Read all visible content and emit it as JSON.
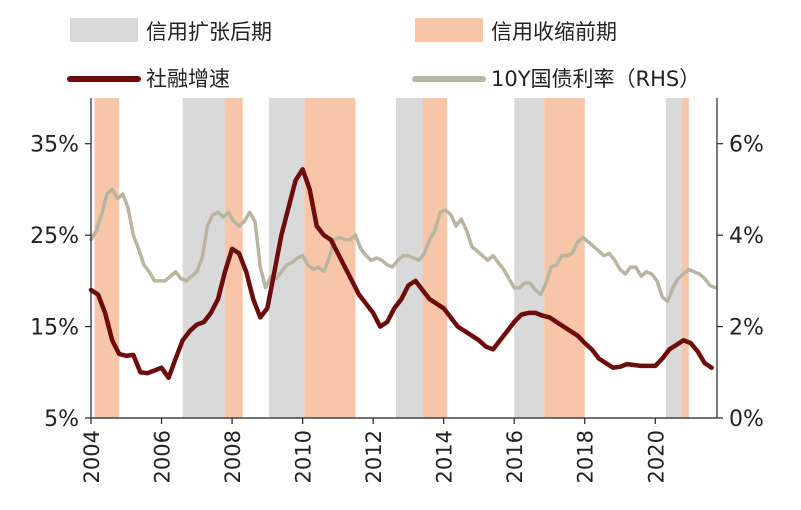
{
  "chart_data": {
    "type": "line",
    "legend": {
      "items": [
        {
          "label": "信用扩张后期",
          "kind": "band",
          "color": "#d9d9d9"
        },
        {
          "label": "信用收缩前期",
          "kind": "band",
          "color": "#f7c6a8"
        },
        {
          "label": "社融增速",
          "kind": "line",
          "color": "#6e0b0b"
        },
        {
          "label": "10Y国债利率（RHS）",
          "kind": "line",
          "color": "#b8b5a3"
        }
      ],
      "placement": "top"
    },
    "x_axis": {
      "min": 2004.0,
      "max": 2021.75,
      "ticks": [
        "2004",
        "2006",
        "2008",
        "2010",
        "2012",
        "2014",
        "2016",
        "2018",
        "2020"
      ],
      "tick_values": [
        2004,
        2006,
        2008,
        2010,
        2012,
        2014,
        2016,
        2018,
        2020
      ]
    },
    "y_left": {
      "min": 5,
      "max": 40,
      "ticks": [
        "5%",
        "15%",
        "25%",
        "35%"
      ],
      "tick_values": [
        5,
        15,
        25,
        35
      ]
    },
    "y_right": {
      "min": 0,
      "max": 7,
      "ticks": [
        "0%",
        "2%",
        "4%",
        "6%"
      ],
      "tick_values": [
        0,
        2,
        4,
        6
      ]
    },
    "grid": false,
    "bands": [
      {
        "type": "contraction_early",
        "start": 2004.1,
        "end": 2004.8
      },
      {
        "type": "expansion_late",
        "start": 2006.6,
        "end": 2007.8
      },
      {
        "type": "contraction_early",
        "start": 2007.8,
        "end": 2008.3
      },
      {
        "type": "expansion_late",
        "start": 2009.05,
        "end": 2010.05
      },
      {
        "type": "contraction_early",
        "start": 2010.05,
        "end": 2011.5
      },
      {
        "type": "expansion_late",
        "start": 2012.65,
        "end": 2013.4
      },
      {
        "type": "contraction_early",
        "start": 2013.4,
        "end": 2014.1
      },
      {
        "type": "expansion_late",
        "start": 2016.0,
        "end": 2016.85
      },
      {
        "type": "contraction_early",
        "start": 2016.85,
        "end": 2018.0
      },
      {
        "type": "expansion_late",
        "start": 2020.3,
        "end": 2020.75
      },
      {
        "type": "contraction_early",
        "start": 2020.75,
        "end": 2020.95
      }
    ],
    "series": [
      {
        "name": "社融增速",
        "axis": "left",
        "points": [
          [
            2004.0,
            19.0
          ],
          [
            2004.2,
            18.5
          ],
          [
            2004.4,
            16.5
          ],
          [
            2004.6,
            13.5
          ],
          [
            2004.8,
            12.0
          ],
          [
            2005.0,
            11.8
          ],
          [
            2005.2,
            11.9
          ],
          [
            2005.4,
            10.0
          ],
          [
            2005.6,
            9.9
          ],
          [
            2005.8,
            10.2
          ],
          [
            2006.0,
            10.5
          ],
          [
            2006.2,
            9.4
          ],
          [
            2006.4,
            11.5
          ],
          [
            2006.6,
            13.5
          ],
          [
            2006.8,
            14.5
          ],
          [
            2007.0,
            15.2
          ],
          [
            2007.2,
            15.5
          ],
          [
            2007.4,
            16.5
          ],
          [
            2007.6,
            18.0
          ],
          [
            2007.8,
            21.0
          ],
          [
            2008.0,
            23.5
          ],
          [
            2008.2,
            23.0
          ],
          [
            2008.4,
            21.0
          ],
          [
            2008.6,
            18.0
          ],
          [
            2008.8,
            16.0
          ],
          [
            2009.0,
            17.0
          ],
          [
            2009.2,
            21.0
          ],
          [
            2009.4,
            25.0
          ],
          [
            2009.6,
            28.0
          ],
          [
            2009.8,
            31.0
          ],
          [
            2010.0,
            32.2
          ],
          [
            2010.2,
            30.0
          ],
          [
            2010.4,
            26.0
          ],
          [
            2010.6,
            25.0
          ],
          [
            2010.8,
            24.5
          ],
          [
            2011.0,
            23.0
          ],
          [
            2011.2,
            21.5
          ],
          [
            2011.4,
            20.0
          ],
          [
            2011.6,
            18.5
          ],
          [
            2011.8,
            17.5
          ],
          [
            2012.0,
            16.5
          ],
          [
            2012.2,
            15.0
          ],
          [
            2012.4,
            15.5
          ],
          [
            2012.6,
            17.0
          ],
          [
            2012.8,
            18.0
          ],
          [
            2013.0,
            19.5
          ],
          [
            2013.2,
            20.0
          ],
          [
            2013.4,
            19.0
          ],
          [
            2013.6,
            18.0
          ],
          [
            2013.8,
            17.5
          ],
          [
            2014.0,
            17.0
          ],
          [
            2014.2,
            16.0
          ],
          [
            2014.4,
            15.0
          ],
          [
            2014.6,
            14.5
          ],
          [
            2014.8,
            14.0
          ],
          [
            2015.0,
            13.5
          ],
          [
            2015.2,
            12.8
          ],
          [
            2015.4,
            12.5
          ],
          [
            2015.6,
            13.5
          ],
          [
            2015.8,
            14.5
          ],
          [
            2016.0,
            15.5
          ],
          [
            2016.2,
            16.3
          ],
          [
            2016.4,
            16.5
          ],
          [
            2016.6,
            16.5
          ],
          [
            2016.8,
            16.2
          ],
          [
            2017.0,
            16.0
          ],
          [
            2017.2,
            15.5
          ],
          [
            2017.4,
            15.0
          ],
          [
            2017.6,
            14.5
          ],
          [
            2017.8,
            14.0
          ],
          [
            2018.0,
            13.2
          ],
          [
            2018.2,
            12.5
          ],
          [
            2018.4,
            11.5
          ],
          [
            2018.6,
            11.0
          ],
          [
            2018.8,
            10.5
          ],
          [
            2019.0,
            10.6
          ],
          [
            2019.2,
            10.9
          ],
          [
            2019.4,
            10.8
          ],
          [
            2019.6,
            10.7
          ],
          [
            2019.8,
            10.7
          ],
          [
            2020.0,
            10.7
          ],
          [
            2020.2,
            11.5
          ],
          [
            2020.4,
            12.5
          ],
          [
            2020.6,
            13.0
          ],
          [
            2020.8,
            13.5
          ],
          [
            2021.0,
            13.2
          ],
          [
            2021.2,
            12.3
          ],
          [
            2021.4,
            11.0
          ],
          [
            2021.6,
            10.5
          ]
        ]
      },
      {
        "name": "10Y国债利率（RHS）",
        "axis": "right",
        "points": [
          [
            2004.0,
            3.9
          ],
          [
            2004.15,
            4.1
          ],
          [
            2004.3,
            4.45
          ],
          [
            2004.45,
            4.9
          ],
          [
            2004.6,
            5.0
          ],
          [
            2004.75,
            4.8
          ],
          [
            2004.9,
            4.9
          ],
          [
            2005.05,
            4.6
          ],
          [
            2005.2,
            4.0
          ],
          [
            2005.35,
            3.7
          ],
          [
            2005.5,
            3.35
          ],
          [
            2005.65,
            3.2
          ],
          [
            2005.8,
            3.0
          ],
          [
            2005.95,
            3.0
          ],
          [
            2006.1,
            3.0
          ],
          [
            2006.25,
            3.1
          ],
          [
            2006.4,
            3.2
          ],
          [
            2006.55,
            3.05
          ],
          [
            2006.7,
            3.0
          ],
          [
            2006.85,
            3.1
          ],
          [
            2007.0,
            3.2
          ],
          [
            2007.15,
            3.5
          ],
          [
            2007.3,
            4.2
          ],
          [
            2007.45,
            4.45
          ],
          [
            2007.6,
            4.5
          ],
          [
            2007.75,
            4.4
          ],
          [
            2007.9,
            4.5
          ],
          [
            2008.05,
            4.3
          ],
          [
            2008.2,
            4.2
          ],
          [
            2008.35,
            4.3
          ],
          [
            2008.5,
            4.5
          ],
          [
            2008.65,
            4.3
          ],
          [
            2008.8,
            3.3
          ],
          [
            2008.95,
            2.85
          ],
          [
            2009.1,
            3.1
          ],
          [
            2009.25,
            3.05
          ],
          [
            2009.4,
            3.2
          ],
          [
            2009.55,
            3.35
          ],
          [
            2009.7,
            3.4
          ],
          [
            2009.85,
            3.5
          ],
          [
            2010.0,
            3.55
          ],
          [
            2010.15,
            3.35
          ],
          [
            2010.3,
            3.25
          ],
          [
            2010.45,
            3.3
          ],
          [
            2010.6,
            3.2
          ],
          [
            2010.75,
            3.5
          ],
          [
            2010.9,
            3.9
          ],
          [
            2011.05,
            3.95
          ],
          [
            2011.2,
            3.9
          ],
          [
            2011.35,
            3.9
          ],
          [
            2011.5,
            4.0
          ],
          [
            2011.65,
            3.7
          ],
          [
            2011.8,
            3.55
          ],
          [
            2011.95,
            3.45
          ],
          [
            2012.1,
            3.5
          ],
          [
            2012.25,
            3.45
          ],
          [
            2012.4,
            3.35
          ],
          [
            2012.55,
            3.3
          ],
          [
            2012.7,
            3.45
          ],
          [
            2012.85,
            3.55
          ],
          [
            2013.0,
            3.55
          ],
          [
            2013.15,
            3.5
          ],
          [
            2013.3,
            3.45
          ],
          [
            2013.45,
            3.6
          ],
          [
            2013.6,
            3.9
          ],
          [
            2013.75,
            4.1
          ],
          [
            2013.9,
            4.5
          ],
          [
            2014.05,
            4.55
          ],
          [
            2014.2,
            4.45
          ],
          [
            2014.35,
            4.2
          ],
          [
            2014.5,
            4.35
          ],
          [
            2014.65,
            4.1
          ],
          [
            2014.8,
            3.75
          ],
          [
            2014.95,
            3.65
          ],
          [
            2015.1,
            3.55
          ],
          [
            2015.25,
            3.45
          ],
          [
            2015.4,
            3.55
          ],
          [
            2015.55,
            3.4
          ],
          [
            2015.7,
            3.25
          ],
          [
            2015.85,
            3.05
          ],
          [
            2016.0,
            2.85
          ],
          [
            2016.15,
            2.85
          ],
          [
            2016.3,
            2.95
          ],
          [
            2016.45,
            2.95
          ],
          [
            2016.6,
            2.8
          ],
          [
            2016.75,
            2.7
          ],
          [
            2016.9,
            2.95
          ],
          [
            2017.05,
            3.3
          ],
          [
            2017.2,
            3.35
          ],
          [
            2017.35,
            3.55
          ],
          [
            2017.5,
            3.55
          ],
          [
            2017.65,
            3.6
          ],
          [
            2017.8,
            3.85
          ],
          [
            2017.95,
            3.95
          ],
          [
            2018.1,
            3.85
          ],
          [
            2018.25,
            3.75
          ],
          [
            2018.4,
            3.65
          ],
          [
            2018.55,
            3.55
          ],
          [
            2018.7,
            3.6
          ],
          [
            2018.85,
            3.45
          ],
          [
            2019.0,
            3.25
          ],
          [
            2019.15,
            3.15
          ],
          [
            2019.3,
            3.3
          ],
          [
            2019.45,
            3.3
          ],
          [
            2019.6,
            3.1
          ],
          [
            2019.75,
            3.2
          ],
          [
            2019.9,
            3.15
          ],
          [
            2020.05,
            3.0
          ],
          [
            2020.2,
            2.65
          ],
          [
            2020.35,
            2.55
          ],
          [
            2020.5,
            2.85
          ],
          [
            2020.65,
            3.05
          ],
          [
            2020.8,
            3.15
          ],
          [
            2020.95,
            3.25
          ],
          [
            2021.1,
            3.2
          ],
          [
            2021.25,
            3.15
          ],
          [
            2021.4,
            3.05
          ],
          [
            2021.55,
            2.9
          ],
          [
            2021.7,
            2.85
          ]
        ]
      }
    ]
  }
}
